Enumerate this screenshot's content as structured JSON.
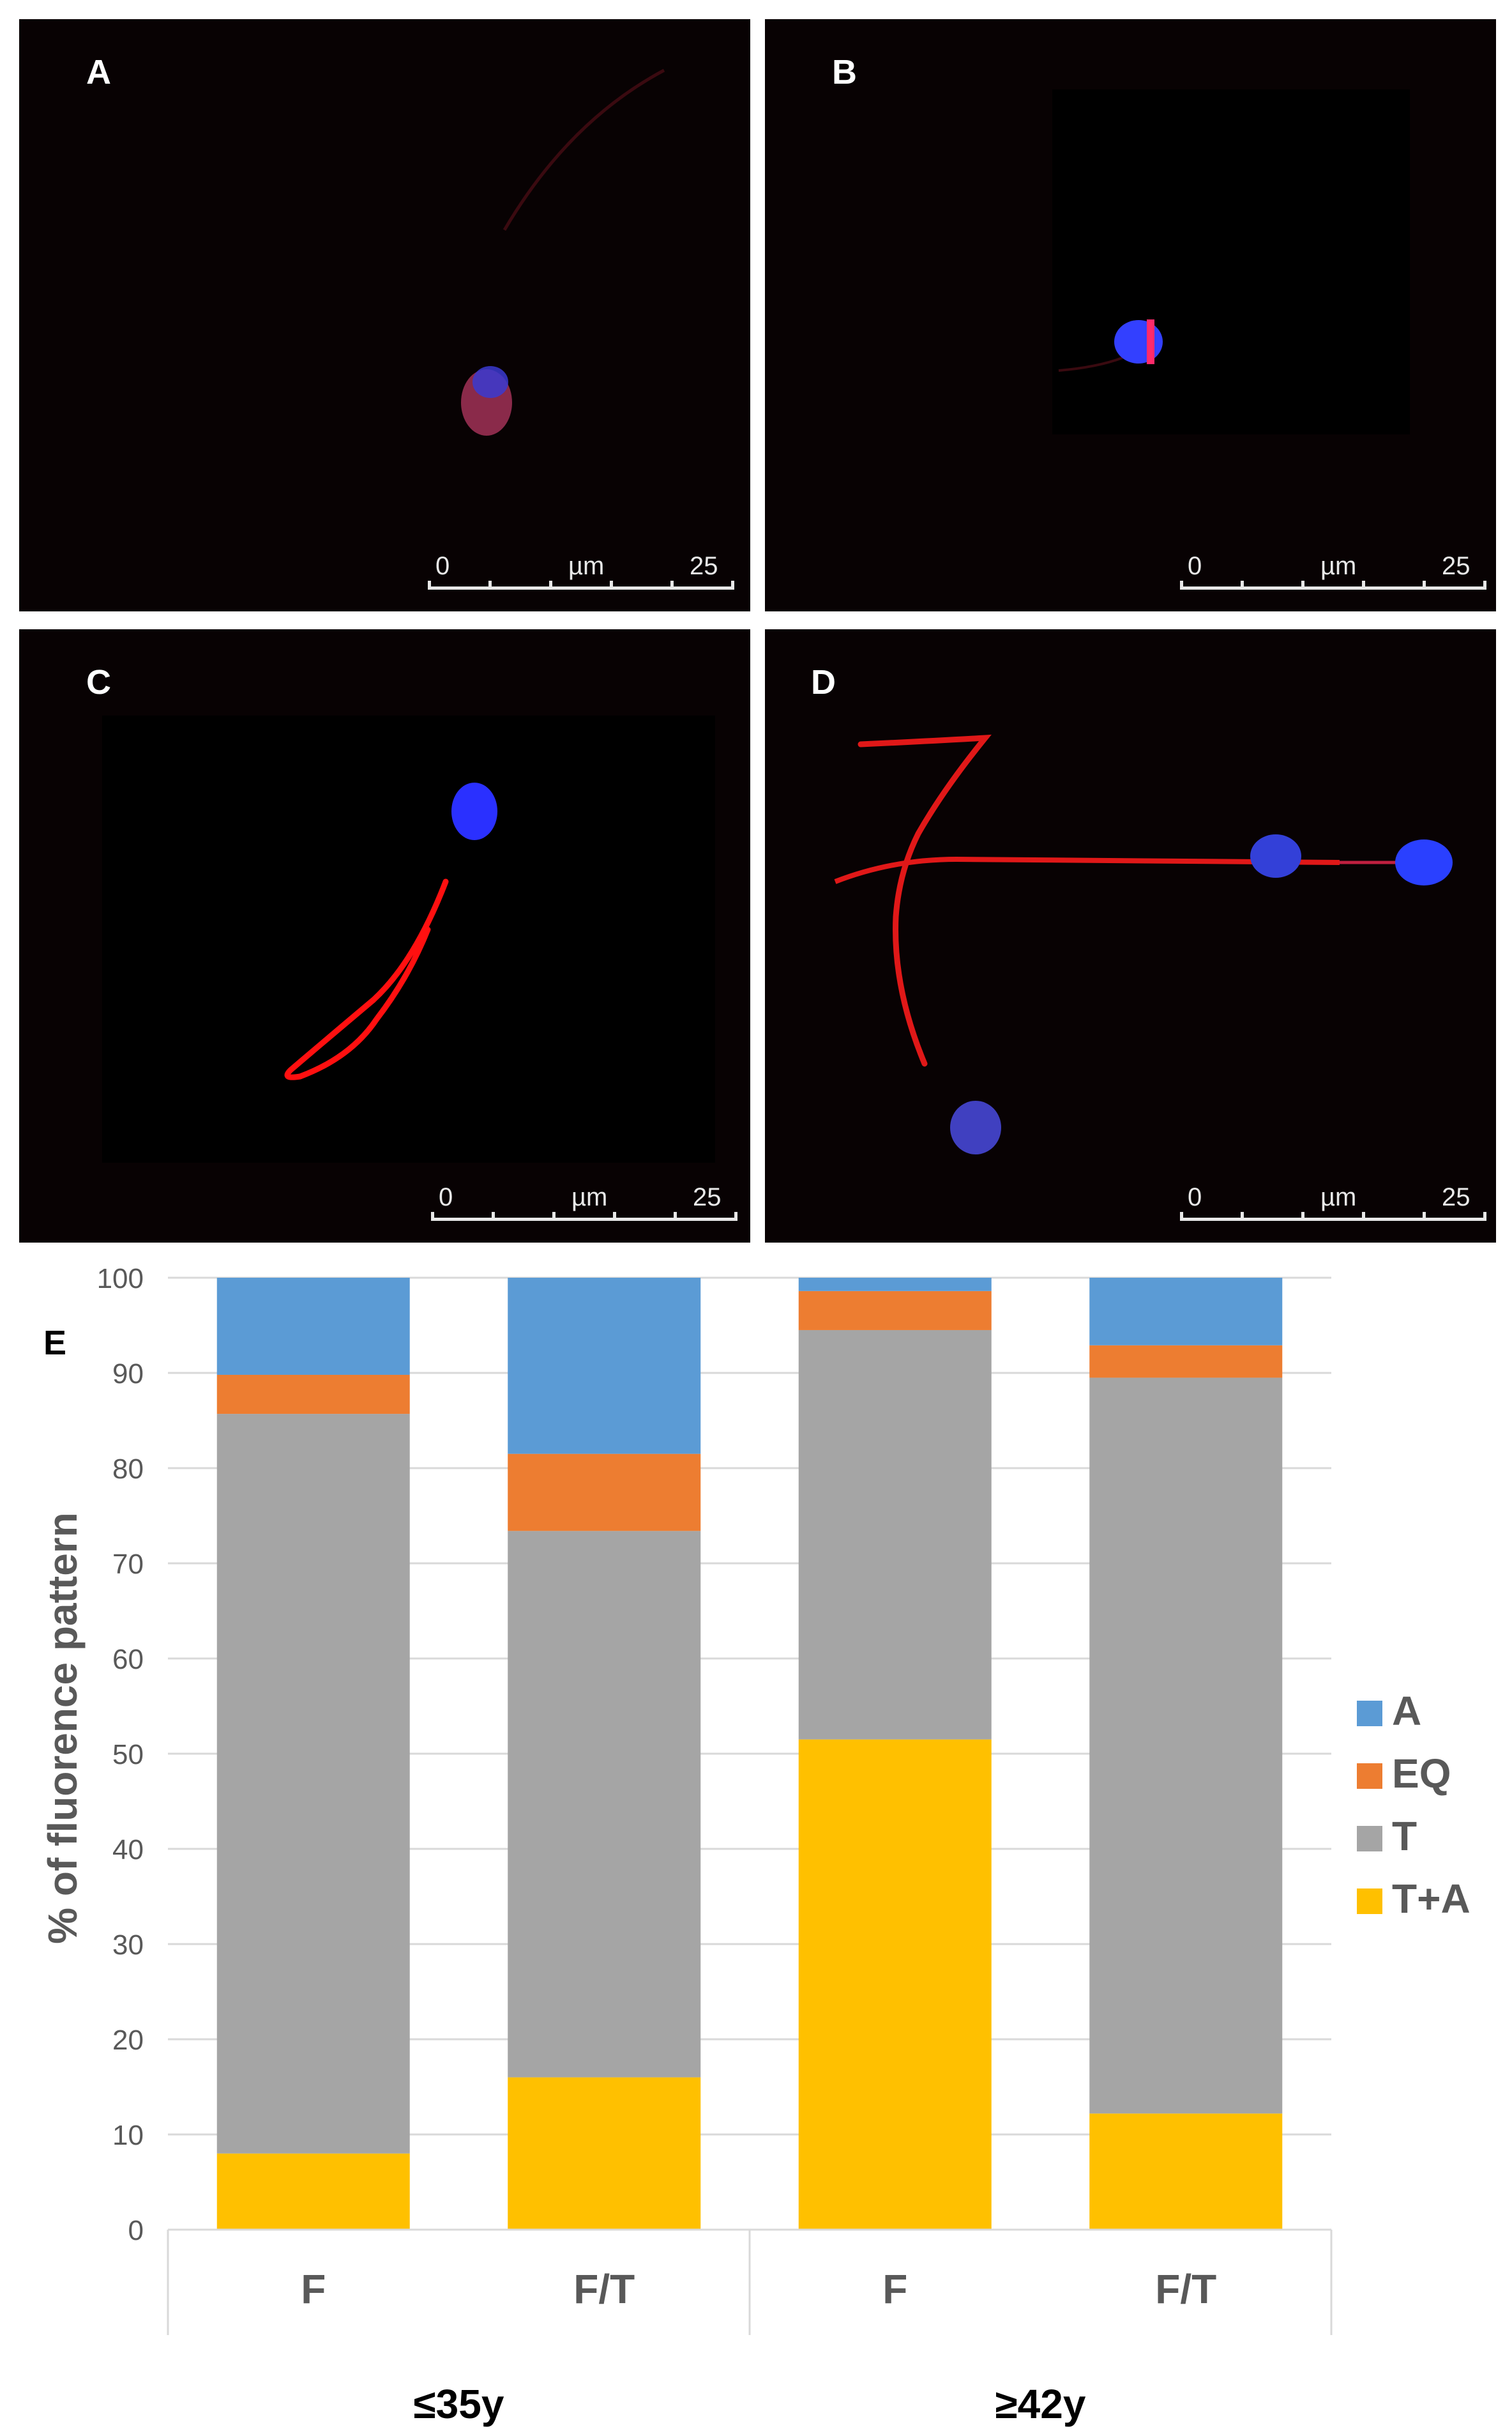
{
  "panels": [
    {
      "id": "A",
      "label": "A",
      "scale": {
        "start": "0",
        "unit": "µm",
        "end": "25"
      }
    },
    {
      "id": "B",
      "label": "B",
      "scale": {
        "start": "0",
        "unit": "µm",
        "end": "25"
      }
    },
    {
      "id": "C",
      "label": "C",
      "scale": {
        "start": "0",
        "unit": "µm",
        "end": "25"
      }
    },
    {
      "id": "D",
      "label": "D",
      "scale": {
        "start": "0",
        "unit": "µm",
        "end": "25"
      }
    }
  ],
  "colors": {
    "A": "#5b9bd5",
    "EQ": "#ed7d31",
    "T": "#a5a5a5",
    "T+A": "#ffc000"
  },
  "chart_data": {
    "type": "bar",
    "stacked": true,
    "panel_label": "E",
    "ylabel": "% of fluorence pattern",
    "ylim": [
      0,
      100
    ],
    "yticks": [
      0,
      10,
      20,
      30,
      40,
      50,
      60,
      70,
      80,
      90,
      100
    ],
    "grid": true,
    "legend_position": "right",
    "categories": [
      "F",
      "F/T",
      "F",
      "F/T"
    ],
    "groups": [
      {
        "label": "≤35y",
        "span": [
          0,
          1
        ]
      },
      {
        "label": "≥42y",
        "span": [
          2,
          3
        ]
      }
    ],
    "series": [
      {
        "name": "T+A",
        "color": "#ffc000",
        "values": [
          8,
          16,
          51.5,
          12.2
        ]
      },
      {
        "name": "T",
        "color": "#a5a5a5",
        "values": [
          77.7,
          57.4,
          43,
          77.3
        ]
      },
      {
        "name": "EQ",
        "color": "#ed7d31",
        "values": [
          4.1,
          8.1,
          4.1,
          3.4
        ]
      },
      {
        "name": "A",
        "color": "#5b9bd5",
        "values": [
          10.2,
          18.5,
          1.4,
          7.1
        ]
      }
    ],
    "legend_order": [
      "A",
      "EQ",
      "T",
      "T+A"
    ]
  }
}
